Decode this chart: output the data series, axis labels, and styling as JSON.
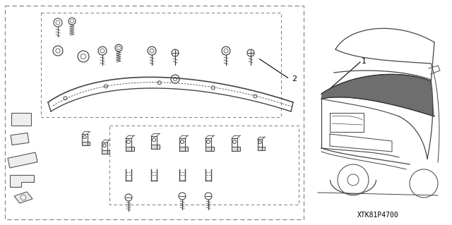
{
  "bg_color": "#ffffff",
  "line_color": "#444444",
  "dash_color": "#666666",
  "text_color": "#000000",
  "part_number": "XTK81P4700",
  "label_1": "1",
  "label_2": "2",
  "fig_width": 6.4,
  "fig_height": 3.19,
  "dpi": 100
}
